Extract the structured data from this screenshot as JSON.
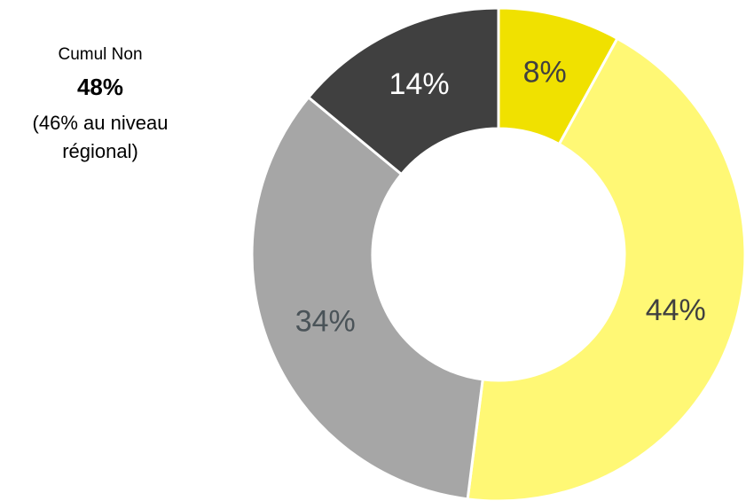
{
  "chart_data": {
    "type": "donut",
    "values": [
      8,
      44,
      34,
      14
    ],
    "value_labels": [
      "8%",
      "44%",
      "34%",
      "14%"
    ],
    "colors": [
      "#f0e100",
      "#fff875",
      "#a6a6a6",
      "#404040"
    ],
    "label_colors": [
      "#404040",
      "#404040",
      "#4a5358",
      "#ffffff"
    ],
    "annotation": [
      "Cumul Non",
      "48%",
      "(46% au niveau",
      "régional)"
    ]
  }
}
